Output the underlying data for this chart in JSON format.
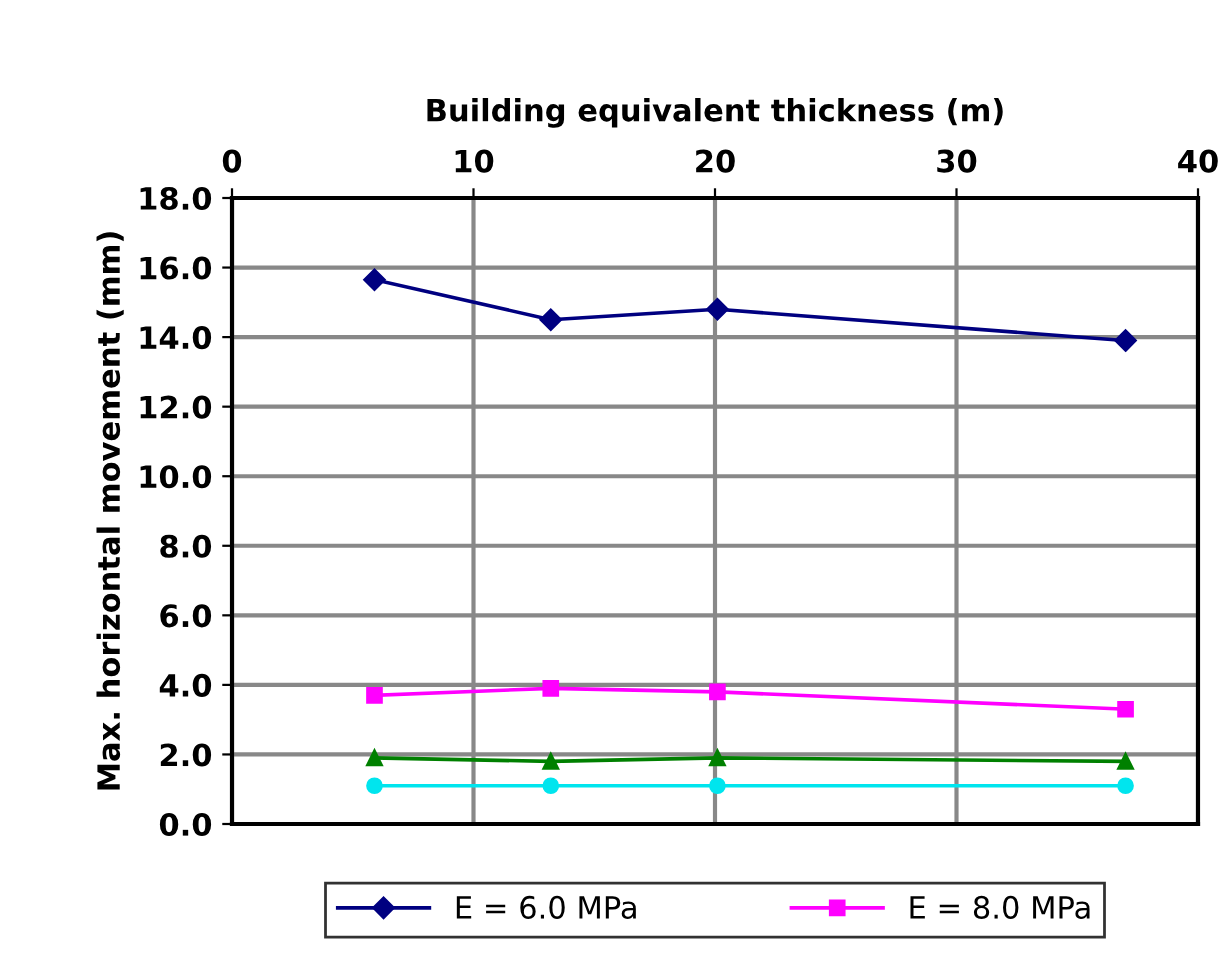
{
  "chart_data": {
    "type": "line",
    "xlabel": "Building equivalent thickness (m)",
    "ylabel": "Max. horizontal movement (mm)",
    "xlim": [
      0,
      40
    ],
    "xticks": [
      0,
      10,
      20,
      30,
      40
    ],
    "ylim": [
      0,
      18
    ],
    "yticks": [
      {
        "value": 0,
        "label": "0.0"
      },
      {
        "value": 2,
        "label": "2.0"
      },
      {
        "value": 4,
        "label": "4.0"
      },
      {
        "value": 6,
        "label": "6.0"
      },
      {
        "value": 8,
        "label": "8.0"
      },
      {
        "value": 10,
        "label": "10.0"
      },
      {
        "value": 12,
        "label": "12.0"
      },
      {
        "value": 14,
        "label": "14.0"
      },
      {
        "value": 16,
        "label": "16.0"
      },
      {
        "value": 18,
        "label": "18.0"
      }
    ],
    "x": [
      5.9,
      13.2,
      20.1,
      37.0
    ],
    "grid": true,
    "legend": "bottom",
    "series": [
      {
        "name": "E = 6.0 MPa",
        "color": "#000080",
        "marker": "diamond",
        "values": [
          15.65,
          14.5,
          14.8,
          13.9
        ]
      },
      {
        "name": "E = 8.0 MPa",
        "color": "#ff00ff",
        "marker": "square",
        "values": [
          3.7,
          3.9,
          3.8,
          3.3
        ]
      },
      {
        "color": "#008000",
        "marker": "triangle",
        "values": [
          1.9,
          1.8,
          1.9,
          1.8
        ]
      },
      {
        "color": "#00e5ee",
        "marker": "circle",
        "values": [
          1.1,
          1.1,
          1.1,
          1.1
        ]
      }
    ]
  }
}
